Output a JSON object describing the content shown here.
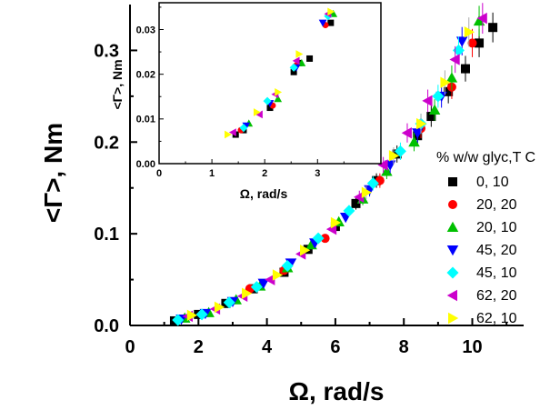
{
  "chart_data": [
    {
      "type": "scatter",
      "title": "",
      "xlabel": "Ω, rad/s",
      "ylabel": "<Γ>, Nm",
      "xlim": [
        0,
        11.5
      ],
      "ylim": [
        0,
        0.35
      ],
      "xticks": [
        "0",
        "2",
        "4",
        "6",
        "8",
        "10"
      ],
      "yticks": [
        "0.0",
        "0.1",
        "0.2",
        "0.3"
      ],
      "legend_title": "% w/w glyc,T C",
      "legend_position": "right",
      "series": [
        {
          "name": "0, 10",
          "marker": "square",
          "color": "#000000",
          "x": [
            1.3,
            2.0,
            2.8,
            3.6,
            4.5,
            5.2,
            6.0,
            6.6,
            7.2,
            7.8,
            8.4,
            8.8,
            9.3,
            9.8,
            10.2,
            10.6
          ],
          "y": [
            0.005,
            0.012,
            0.024,
            0.04,
            0.058,
            0.083,
            0.108,
            0.133,
            0.158,
            0.187,
            0.207,
            0.228,
            0.255,
            0.28,
            0.308,
            0.325
          ]
        },
        {
          "name": "20, 20",
          "marker": "circle",
          "color": "#ff0000",
          "x": [
            3.5,
            4.5,
            5.7,
            7.3,
            8.5,
            9.4,
            10.0
          ],
          "y": [
            0.04,
            0.06,
            0.095,
            0.158,
            0.215,
            0.26,
            0.308
          ]
        },
        {
          "name": "20, 10",
          "marker": "triangle-up",
          "color": "#00c000",
          "x": [
            1.6,
            2.3,
            3.1,
            3.8,
            4.6,
            5.3,
            6.1,
            6.8,
            7.5,
            8.3,
            8.9,
            9.4,
            10.2
          ],
          "y": [
            0.008,
            0.014,
            0.028,
            0.043,
            0.063,
            0.088,
            0.113,
            0.138,
            0.168,
            0.2,
            0.235,
            0.27,
            0.332
          ]
        },
        {
          "name": "45, 20",
          "marker": "triangle-down",
          "color": "#0000ff",
          "x": [
            1.5,
            2.2,
            3.0,
            3.9,
            4.7,
            5.4,
            6.3,
            7.0,
            7.6,
            8.4,
            9.1,
            9.7
          ],
          "y": [
            0.007,
            0.013,
            0.026,
            0.046,
            0.068,
            0.09,
            0.118,
            0.148,
            0.175,
            0.21,
            0.25,
            0.31
          ]
        },
        {
          "name": "45, 10",
          "marker": "diamond",
          "color": "#00ffff",
          "x": [
            1.4,
            2.1,
            2.9,
            3.7,
            4.6,
            5.5,
            6.4,
            7.1,
            7.9,
            8.5,
            9.0,
            9.6
          ],
          "y": [
            0.006,
            0.012,
            0.025,
            0.042,
            0.065,
            0.095,
            0.125,
            0.155,
            0.19,
            0.22,
            0.25,
            0.3
          ]
        },
        {
          "name": "62, 20",
          "marker": "triangle-left",
          "color": "#cc00cc",
          "x": [
            1.7,
            2.5,
            3.3,
            4.1,
            5.0,
            5.9,
            6.7,
            7.4,
            8.1,
            8.7,
            9.5,
            10.3
          ],
          "y": [
            0.01,
            0.018,
            0.032,
            0.05,
            0.078,
            0.105,
            0.14,
            0.175,
            0.21,
            0.245,
            0.29,
            0.335
          ]
        },
        {
          "name": "62, 10",
          "marker": "triangle-right",
          "color": "#ffff00",
          "x": [
            1.8,
            2.6,
            3.4,
            4.3,
            5.1,
            6.0,
            6.9,
            7.7,
            8.5,
            9.2,
            9.9
          ],
          "y": [
            0.011,
            0.02,
            0.035,
            0.055,
            0.082,
            0.112,
            0.145,
            0.185,
            0.22,
            0.265,
            0.32
          ]
        }
      ]
    },
    {
      "type": "scatter",
      "title": "",
      "xlabel": "Ω, rad/s",
      "ylabel": "<Γ>, Nm",
      "xlim": [
        0,
        4.2
      ],
      "ylim": [
        0,
        0.036
      ],
      "xticks": [
        "0",
        "1",
        "2",
        "3"
      ],
      "yticks": [
        "0.00",
        "0.01",
        "0.02",
        "0.03"
      ],
      "series": [
        {
          "name": "0, 10",
          "marker": "square",
          "color": "#000000",
          "x": [
            1.45,
            1.6,
            2.1,
            2.55,
            2.65,
            2.85,
            3.25
          ],
          "y": [
            0.0065,
            0.0075,
            0.0125,
            0.0205,
            0.0225,
            0.0235,
            0.0315
          ]
        },
        {
          "name": "20, 20",
          "marker": "circle",
          "color": "#ff0000",
          "x": [
            1.55,
            2.15,
            2.6,
            3.15
          ],
          "y": [
            0.0075,
            0.013,
            0.022,
            0.031
          ]
        },
        {
          "name": "20, 10",
          "marker": "triangle-up",
          "color": "#00c000",
          "x": [
            1.7,
            2.25,
            2.7,
            3.3
          ],
          "y": [
            0.009,
            0.0145,
            0.0225,
            0.0335
          ]
        },
        {
          "name": "45, 20",
          "marker": "triangle-down",
          "color": "#0000ff",
          "x": [
            1.65,
            2.1,
            2.6,
            3.1
          ],
          "y": [
            0.0085,
            0.0135,
            0.0215,
            0.0315
          ]
        },
        {
          "name": "45, 10",
          "marker": "diamond",
          "color": "#00ffff",
          "x": [
            1.6,
            2.05,
            2.55,
            3.2
          ],
          "y": [
            0.008,
            0.014,
            0.0215,
            0.033
          ]
        },
        {
          "name": "62, 20",
          "marker": "triangle-left",
          "color": "#cc00cc",
          "x": [
            1.4,
            1.9,
            2.2,
            2.6,
            3.2
          ],
          "y": [
            0.007,
            0.011,
            0.0155,
            0.023,
            0.0335
          ]
        },
        {
          "name": "62, 10",
          "marker": "triangle-right",
          "color": "#ffff00",
          "x": [
            1.3,
            1.85,
            2.25,
            2.65,
            3.25
          ],
          "y": [
            0.0065,
            0.0115,
            0.016,
            0.0245,
            0.034
          ]
        }
      ]
    }
  ]
}
